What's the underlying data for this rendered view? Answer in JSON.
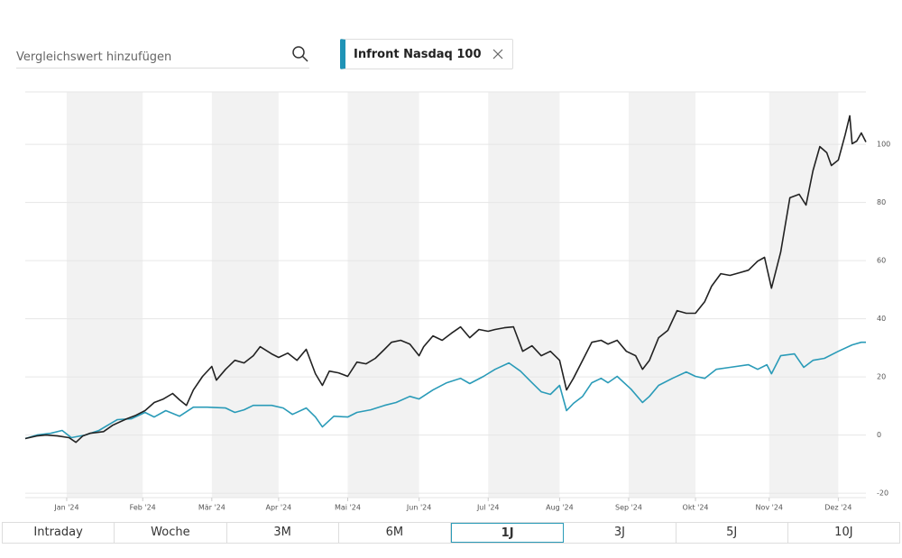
{
  "search_placeholder": "Vergleichswert hinzufügen",
  "periods": [
    "Intraday",
    "Woche",
    "3M",
    "6M",
    "1J",
    "3J",
    "5J",
    "10J"
  ],
  "selected_period_index": 4,
  "chart_data": {
    "type": "line",
    "xlim": [
      0,
      365
    ],
    "xticks": [
      {
        "value": 18,
        "label": "Jan '24"
      },
      {
        "value": 51,
        "label": "Feb '24"
      },
      {
        "value": 81,
        "label": "Mär '24"
      },
      {
        "value": 110,
        "label": "Apr '24"
      },
      {
        "value": 140,
        "label": "Mai '24"
      },
      {
        "value": 171,
        "label": "Jun '24"
      },
      {
        "value": 201,
        "label": "Jul '24"
      },
      {
        "value": 232,
        "label": "Aug '24"
      },
      {
        "value": 262,
        "label": "Sep '24"
      },
      {
        "value": 291,
        "label": "Okt '24"
      },
      {
        "value": 323,
        "label": "Nov '24"
      },
      {
        "value": 353,
        "label": "Dez '24"
      }
    ],
    "ylim": [
      -21.5,
      118
    ],
    "yticks": [
      -20,
      0,
      20,
      40,
      60,
      80,
      100
    ],
    "grid": true,
    "series": [
      {
        "color": "#222222",
        "x": [
          0,
          5,
          9,
          14,
          19,
          22,
          25,
          28,
          34,
          38,
          44,
          48,
          52,
          56,
          60,
          64,
          67,
          70,
          73,
          77,
          81,
          83,
          87,
          91,
          95,
          99,
          102,
          107,
          110,
          114,
          118,
          122,
          126,
          129,
          132,
          136,
          140,
          144,
          148,
          152,
          156,
          159,
          163,
          167,
          171,
          173,
          177,
          181,
          185,
          189,
          193,
          197,
          201,
          204,
          208,
          212,
          216,
          220,
          224,
          228,
          232,
          235,
          238,
          242,
          246,
          250,
          253,
          257,
          261,
          265,
          268,
          271,
          275,
          279,
          283,
          287,
          291,
          295,
          298,
          302,
          306,
          310,
          314,
          318,
          321,
          324,
          328,
          332,
          336,
          339,
          342,
          345,
          348,
          350,
          353,
          356,
          358,
          359,
          361,
          363,
          365
        ],
        "values": [
          -1.2,
          -0.3,
          0,
          -0.3,
          -0.9,
          -2.5,
          -0.3,
          0.6,
          1.2,
          3.4,
          5.6,
          6.8,
          8.4,
          11.2,
          12.4,
          14.3,
          12.1,
          10.2,
          15.5,
          20.2,
          23.6,
          18.9,
          22.6,
          25.7,
          24.8,
          27.3,
          30.4,
          27.9,
          26.7,
          28.2,
          25.7,
          29.5,
          21.1,
          17.1,
          22,
          21.4,
          20.2,
          25.1,
          24.5,
          26.4,
          29.5,
          31.9,
          32.6,
          31.3,
          27.3,
          30.4,
          34.1,
          32.6,
          35,
          37.2,
          33.5,
          36.3,
          35.7,
          36.3,
          36.9,
          37.2,
          28.8,
          30.7,
          27.3,
          28.8,
          25.7,
          15.5,
          19.5,
          25.7,
          31.9,
          32.6,
          31.3,
          32.6,
          28.8,
          27.3,
          22.6,
          25.7,
          33.5,
          36,
          42.8,
          41.9,
          41.9,
          45.9,
          51.2,
          55.5,
          54.9,
          55.8,
          56.7,
          59.8,
          61.1,
          50.5,
          62.9,
          81.6,
          82.8,
          79.1,
          90.9,
          99.2,
          97.1,
          92.7,
          94.6,
          103.3,
          109.8,
          100.2,
          101.1,
          103.9,
          100.8
        ]
      },
      {
        "name": "Infront Nasdaq 100",
        "color": "#2a9bb8",
        "x": [
          0,
          5,
          11,
          16,
          20,
          26,
          32,
          40,
          46,
          52,
          56,
          61,
          67,
          73,
          79,
          87,
          91,
          95,
          99,
          107,
          112,
          116,
          122,
          126,
          129,
          134,
          140,
          144,
          150,
          156,
          161,
          167,
          171,
          177,
          183,
          189,
          193,
          199,
          204,
          210,
          215,
          220,
          224,
          228,
          232,
          235,
          238,
          242,
          246,
          250,
          253,
          257,
          263,
          268,
          271,
          275,
          281,
          287,
          291,
          295,
          300,
          306,
          314,
          318,
          322,
          324,
          328,
          334,
          338,
          342,
          347,
          353,
          359,
          363,
          365
        ],
        "values": [
          -1.2,
          0,
          0.6,
          1.6,
          -0.9,
          0,
          1.6,
          5.3,
          5.6,
          7.8,
          6.2,
          8.4,
          6.5,
          9.6,
          9.6,
          9.3,
          7.8,
          8.7,
          10.2,
          10.2,
          9.3,
          7.1,
          9.3,
          6.2,
          2.8,
          6.5,
          6.2,
          7.8,
          8.7,
          10.2,
          11.2,
          13.3,
          12.4,
          15.5,
          18,
          19.5,
          17.7,
          20.2,
          22.6,
          24.8,
          22,
          18,
          14.9,
          14,
          17.1,
          8.4,
          10.9,
          13.3,
          18,
          19.5,
          18,
          20.2,
          15.8,
          11.2,
          13.3,
          17.1,
          19.5,
          21.7,
          20.2,
          19.5,
          22.6,
          23.3,
          24.2,
          22.6,
          24.2,
          21.1,
          27.3,
          27.9,
          23.3,
          25.7,
          26.4,
          28.8,
          31,
          31.9,
          31.9
        ]
      }
    ]
  }
}
